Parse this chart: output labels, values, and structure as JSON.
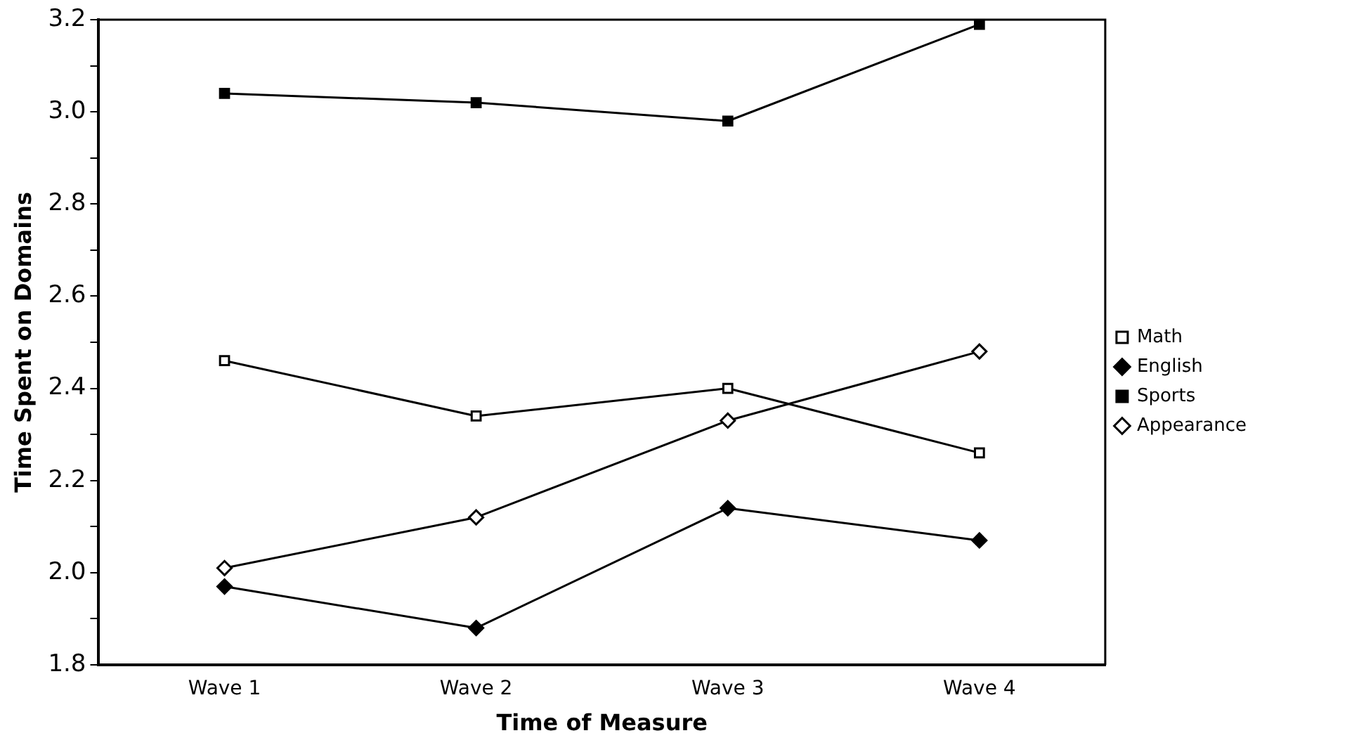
{
  "chart_data": {
    "type": "line",
    "xlabel": "Time of Measure",
    "ylabel": "Time Spent on Domains",
    "categories": [
      "Wave 1",
      "Wave 2",
      "Wave 3",
      "Wave 4"
    ],
    "series": [
      {
        "name": "Math",
        "color": "#000000",
        "marker": "square",
        "values": [
          2.46,
          2.34,
          2.4,
          2.26
        ]
      },
      {
        "name": "English",
        "color": "#000000",
        "marker": "diamond",
        "values": [
          1.97,
          1.88,
          2.14,
          2.07
        ]
      },
      {
        "name": "Sports",
        "color": "#000000",
        "marker": "square",
        "values": [
          3.04,
          3.02,
          2.98,
          3.19
        ]
      },
      {
        "name": "Appearance",
        "color": "#000000",
        "marker": "diamond",
        "values": [
          2.01,
          2.12,
          2.33,
          2.48
        ]
      }
    ],
    "ylim": [
      1.8,
      3.2
    ],
    "yticks": [
      1.8,
      {
        "value": 1.9,
        "label": null
      },
      "2.0",
      {
        "value": 2.1,
        "label": null
      },
      2.2,
      {
        "value": 2.3,
        "label": null
      },
      2.4,
      {
        "value": 2.5,
        "label": null
      },
      2.6,
      {
        "value": 2.7,
        "label": null
      },
      2.8,
      {
        "value": 2.9,
        "label": null
      },
      {
        "value": 3.0,
        "label": "3.0"
      },
      {
        "value": 3.1,
        "label": null
      },
      3.2
    ],
    "grid": false,
    "legend": "right",
    "line_style": "solid"
  }
}
